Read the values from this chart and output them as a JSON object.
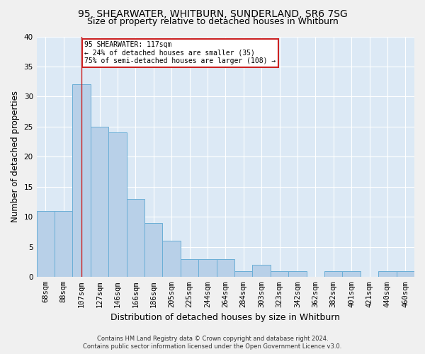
{
  "title1": "95, SHEARWATER, WHITBURN, SUNDERLAND, SR6 7SG",
  "title2": "Size of property relative to detached houses in Whitburn",
  "xlabel": "Distribution of detached houses by size in Whitburn",
  "ylabel": "Number of detached properties",
  "categories": [
    "68sqm",
    "88sqm",
    "107sqm",
    "127sqm",
    "146sqm",
    "166sqm",
    "186sqm",
    "205sqm",
    "225sqm",
    "244sqm",
    "264sqm",
    "284sqm",
    "303sqm",
    "323sqm",
    "342sqm",
    "362sqm",
    "382sqm",
    "401sqm",
    "421sqm",
    "440sqm",
    "460sqm"
  ],
  "values": [
    11,
    11,
    32,
    25,
    24,
    13,
    9,
    6,
    3,
    3,
    3,
    1,
    2,
    1,
    1,
    0,
    1,
    1,
    0,
    1,
    1
  ],
  "bar_color": "#b8d0e8",
  "bar_edge_color": "#6aaed6",
  "vline_x_index": 2,
  "vline_color": "#cc2222",
  "annotation_text": "95 SHEARWATER: 117sqm\n← 24% of detached houses are smaller (35)\n75% of semi-detached houses are larger (108) →",
  "annotation_box_color": "#ffffff",
  "annotation_box_edge": "#cc2222",
  "footer1": "Contains HM Land Registry data © Crown copyright and database right 2024.",
  "footer2": "Contains public sector information licensed under the Open Government Licence v3.0.",
  "ylim": [
    0,
    40
  ],
  "yticks": [
    0,
    5,
    10,
    15,
    20,
    25,
    30,
    35,
    40
  ],
  "background_color": "#dce9f5",
  "grid_color": "#ffffff",
  "title_fontsize": 10,
  "subtitle_fontsize": 9,
  "tick_fontsize": 7.5,
  "ylabel_fontsize": 8.5,
  "xlabel_fontsize": 9
}
